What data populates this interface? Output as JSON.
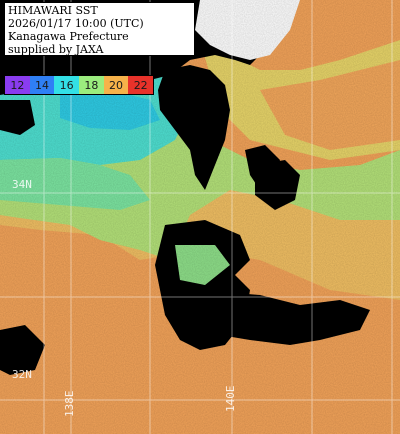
{
  "header": {
    "line1": "HIMAWARI SST",
    "line2": "2026/01/17 10:00 (UTC)",
    "line3": "Kanagawa Prefecture",
    "line4": "supplied by JAXA"
  },
  "colorbar": [
    {
      "label": "12",
      "color": "#8a3cf0"
    },
    {
      "label": "14",
      "color": "#2f7ff5"
    },
    {
      "label": "16",
      "color": "#33e0e6"
    },
    {
      "label": "18",
      "color": "#9bec7e"
    },
    {
      "label": "20",
      "color": "#f6b24a"
    },
    {
      "label": "22",
      "color": "#e8322a"
    }
  ],
  "grid_labels": {
    "lat_34": "34N",
    "lat_32": "32N",
    "lon_138": "138E",
    "lon_140": "140E"
  },
  "colors": {
    "land_no_data": "#000000",
    "cool_water": "#5fe3b8",
    "mid_water": "#a8e87a",
    "warm_water": "#f5a55a",
    "gridline": "#ffffff"
  }
}
